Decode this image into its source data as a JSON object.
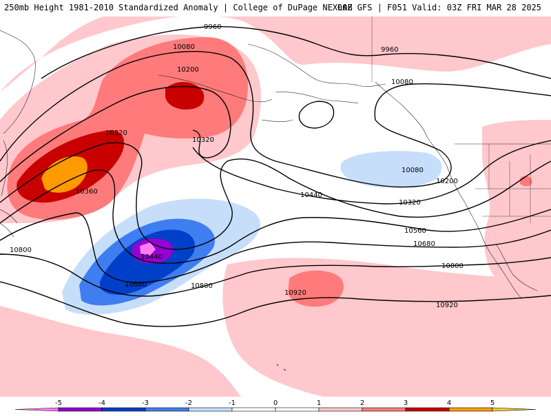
{
  "header": {
    "title_left": "250mb Height 1981-2010 Standardized Anomaly | College of DuPage NEXLAB",
    "title_right": "00Z GFS | F051 Valid: 03Z FRI MAR 28 2025"
  },
  "map": {
    "contour_labels": [
      "9960",
      "9960",
      "10080",
      "10080",
      "10080",
      "10200",
      "10200",
      "10320",
      "10320",
      "10320",
      "10360",
      "10440",
      "10440",
      "10560",
      "10680",
      "10680",
      "10800",
      "10800",
      "10800",
      "10920",
      "10920"
    ],
    "anomaly_colors": {
      "neg5": "#ff7cf4",
      "neg4": "#9500d4",
      "neg3": "#0040c8",
      "neg2": "#3f7ef0",
      "neg1": "#c6defa",
      "zero": "#ffffff",
      "pos1": "#ffc8cc",
      "pos2": "#ff7b7b",
      "pos3": "#c80000",
      "pos4": "#ff9a00",
      "pos5": "#ffcc33"
    }
  },
  "colorbar": {
    "ticks": [
      "-5",
      "-4",
      "-3",
      "-2",
      "-1",
      "0",
      "1",
      "2",
      "3",
      "4",
      "5"
    ],
    "colors": [
      "#ff7cf4",
      "#9500d4",
      "#0040c8",
      "#3f7ef0",
      "#c6defa",
      "#ffffff",
      "#ffffff",
      "#ffc8cc",
      "#ff7b7b",
      "#c80000",
      "#ff9a00",
      "#ffcc33"
    ]
  }
}
